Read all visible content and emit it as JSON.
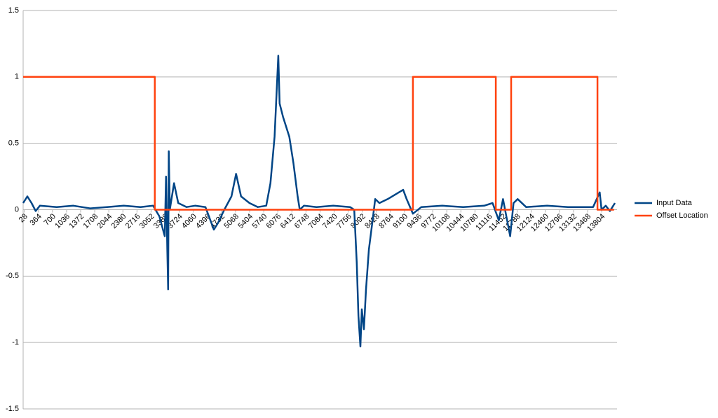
{
  "chart_data": {
    "type": "line",
    "series": [
      {
        "name": "Input Data",
        "color": "#004586",
        "x": [
          0,
          100,
          200,
          300,
          400,
          800,
          1200,
          1600,
          2000,
          2400,
          2800,
          3100,
          3250,
          3380,
          3410,
          3440,
          3460,
          3475,
          3500,
          3600,
          3700,
          3900,
          4100,
          4350,
          4550,
          4650,
          4800,
          4970,
          5080,
          5200,
          5400,
          5600,
          5800,
          5900,
          6000,
          6088,
          6120,
          6200,
          6350,
          6450,
          6550,
          6600,
          6700,
          7000,
          7400,
          7800,
          7900,
          7960,
          8000,
          8047,
          8080,
          8130,
          8180,
          8250,
          8330,
          8400,
          8500,
          8700,
          9068,
          9150,
          9300,
          9500,
          10000,
          10500,
          11000,
          11200,
          11350,
          11450,
          11620,
          11700,
          11800,
          12000,
          12500,
          13000,
          13600,
          13756,
          13800,
          13900,
          14000,
          14120
        ],
        "values": [
          0.05,
          0.1,
          0.05,
          -0.01,
          0.03,
          0.02,
          0.03,
          0.01,
          0.02,
          0.03,
          0.02,
          0.03,
          -0.05,
          -0.2,
          0.25,
          -0.3,
          -0.6,
          0.44,
          0.0,
          0.2,
          0.05,
          0.02,
          0.03,
          0.02,
          -0.15,
          -0.1,
          0.0,
          0.1,
          0.27,
          0.1,
          0.05,
          0.02,
          0.03,
          0.2,
          0.55,
          1.16,
          0.8,
          0.7,
          0.55,
          0.35,
          0.1,
          0.0,
          0.03,
          0.02,
          0.03,
          0.02,
          0.0,
          -0.4,
          -0.8,
          -1.03,
          -0.75,
          -0.9,
          -0.6,
          -0.3,
          -0.1,
          0.08,
          0.05,
          0.08,
          0.15,
          0.08,
          -0.03,
          0.02,
          0.03,
          0.02,
          0.03,
          0.05,
          -0.08,
          0.08,
          -0.2,
          0.05,
          0.08,
          0.02,
          0.03,
          0.02,
          0.02,
          0.13,
          0.0,
          0.03,
          -0.01,
          0.05
        ]
      },
      {
        "name": "Offset Location",
        "color": "#ff420e",
        "x": [
          0,
          3142,
          3142,
          9300,
          9300,
          11278,
          11278,
          11644,
          11644,
          13703,
          13703,
          14100
        ],
        "values": [
          1,
          1,
          0,
          0,
          1,
          1,
          0,
          0,
          1,
          1,
          0,
          0
        ]
      }
    ],
    "xlim": [
      0,
      14170
    ],
    "xticks": [
      28,
      364,
      700,
      1036,
      1372,
      1708,
      2044,
      2380,
      2716,
      3052,
      3388,
      3724,
      4060,
      4396,
      4732,
      5068,
      5404,
      5740,
      6076,
      6412,
      6748,
      7084,
      7420,
      7756,
      8092,
      8428,
      8764,
      9100,
      9436,
      9772,
      10108,
      10444,
      10780,
      11116,
      11452,
      11788,
      12124,
      12460,
      12796,
      13132,
      13468,
      13804
    ],
    "ylim": [
      -1.5,
      1.5
    ],
    "yticks": [
      -1.5,
      -1,
      -0.5,
      0,
      0.5,
      1,
      1.5
    ],
    "grid": true,
    "legend": "right"
  }
}
